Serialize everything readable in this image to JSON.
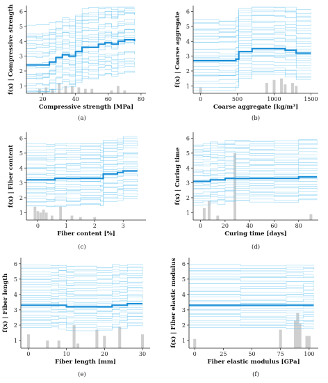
{
  "chart_data": [
    {
      "type": "line",
      "panel_label": "(a)",
      "xlabel": "Compressive strength [MPa]",
      "ylabel": "f(x) | Compressive strength",
      "xlim": [
        10,
        83
      ],
      "ylim": [
        0.5,
        6.4
      ],
      "xticks": [
        20,
        40,
        60,
        80
      ],
      "yticks": [
        1,
        2,
        3,
        4,
        5,
        6
      ],
      "mean_line": {
        "x": [
          10,
          16,
          20,
          24,
          28,
          32,
          36,
          40,
          44,
          48,
          54,
          58,
          62,
          66,
          70,
          76
        ],
        "y": [
          2.4,
          2.4,
          2.4,
          2.6,
          2.9,
          3.1,
          3.0,
          3.3,
          3.6,
          3.6,
          3.8,
          3.9,
          3.8,
          4.0,
          4.1,
          4.0
        ]
      },
      "ice_band": {
        "low": 1.2,
        "high": 5.8,
        "count": 30
      },
      "histogram": {
        "bins": [
          18,
          22,
          26,
          30,
          34,
          38,
          42,
          46,
          50,
          62,
          66,
          70
        ],
        "heights": [
          0.3,
          0.4,
          0.3,
          0.7,
          0.5,
          0.5,
          0.4,
          0.3,
          0.3,
          0.2,
          0.5,
          0.2
        ]
      }
    },
    {
      "type": "line",
      "panel_label": "(b)",
      "xlabel": "Coarse aggregate [kg/m³]",
      "ylabel": "f(x) | Coarse aggregate",
      "xlim": [
        -100,
        1600
      ],
      "ylim": [
        0.5,
        6.4
      ],
      "xticks": [
        0,
        500,
        1000,
        1500
      ],
      "yticks": [
        1,
        2,
        3,
        4,
        5,
        6
      ],
      "mean_line": {
        "x": [
          -100,
          250,
          480,
          520,
          700,
          1000,
          1150,
          1300,
          1500
        ],
        "y": [
          2.7,
          2.7,
          2.8,
          3.3,
          3.5,
          3.5,
          3.4,
          3.2,
          3.2
        ]
      },
      "ice_band": {
        "low": 1.3,
        "high": 6.0,
        "count": 30
      },
      "histogram": {
        "bins": [
          0,
          900,
          1000,
          1100,
          1150,
          1250,
          1300
        ],
        "heights": [
          0.4,
          0.7,
          0.9,
          1.0,
          0.6,
          0.7,
          0.5
        ]
      }
    },
    {
      "type": "line",
      "panel_label": "(c)",
      "xlabel": "Fiber content [%]",
      "ylabel": "f(x) | Fiber content",
      "xlim": [
        -0.4,
        3.8
      ],
      "ylim": [
        0.5,
        6.4
      ],
      "xticks": [
        0,
        1,
        2,
        3
      ],
      "yticks": [
        1,
        2,
        3,
        4,
        5,
        6
      ],
      "mean_line": {
        "x": [
          -0.4,
          0.3,
          0.6,
          1.0,
          1.5,
          2.2,
          2.3,
          2.8,
          3.0,
          3.5
        ],
        "y": [
          3.2,
          3.2,
          3.3,
          3.3,
          3.3,
          3.3,
          3.6,
          3.7,
          3.8,
          3.8
        ]
      },
      "ice_band": {
        "low": 1.6,
        "high": 5.8,
        "count": 30
      },
      "histogram": {
        "bins": [
          -0.1,
          0.0,
          0.1,
          0.2,
          0.3,
          0.5,
          0.8,
          1.2,
          1.5,
          2.0
        ],
        "heights": [
          0.9,
          0.6,
          0.5,
          0.7,
          0.5,
          0.3,
          0.9,
          0.3,
          0.2,
          0.2
        ]
      }
    },
    {
      "type": "line",
      "panel_label": "(d)",
      "xlabel": "Curing time [days]",
      "ylabel": "f(x) | Curing time",
      "xlim": [
        -6,
        96
      ],
      "ylim": [
        0.5,
        6.4
      ],
      "xticks": [
        0,
        20,
        40,
        60,
        80
      ],
      "yticks": [
        1,
        2,
        3,
        4,
        5,
        6
      ],
      "mean_line": {
        "x": [
          -6,
          2,
          8,
          14,
          20,
          28,
          40,
          60,
          80,
          95
        ],
        "y": [
          3.1,
          3.1,
          3.2,
          3.2,
          3.3,
          3.3,
          3.3,
          3.3,
          3.4,
          3.4
        ]
      },
      "ice_band": {
        "low": 1.7,
        "high": 5.8,
        "count": 30
      },
      "histogram": {
        "bins": [
          3,
          7,
          14,
          28,
          90
        ],
        "heights": [
          0.8,
          1.3,
          0.3,
          4.5,
          0.4
        ]
      }
    },
    {
      "type": "line",
      "panel_label": "(e)",
      "xlabel": "Fiber length [mm]",
      "ylabel": "f(x) | Fiber length",
      "xlim": [
        -2,
        32
      ],
      "ylim": [
        0.5,
        6.4
      ],
      "xticks": [
        0,
        10,
        20,
        30
      ],
      "yticks": [
        1,
        2,
        3,
        4,
        5,
        6
      ],
      "mean_line": {
        "x": [
          -2,
          6,
          8,
          10,
          12,
          18,
          22,
          24,
          26,
          30
        ],
        "y": [
          3.3,
          3.3,
          3.3,
          3.2,
          3.2,
          3.2,
          3.3,
          3.3,
          3.4,
          3.4
        ]
      },
      "ice_band": {
        "low": 1.8,
        "high": 5.9,
        "count": 30
      },
      "histogram": {
        "bins": [
          0,
          5,
          8,
          12,
          13,
          18,
          20,
          24,
          30
        ],
        "heights": [
          0.9,
          0.5,
          0.5,
          1.5,
          0.3,
          1.2,
          0.8,
          1.4,
          0.9
        ]
      }
    },
    {
      "type": "line",
      "panel_label": "(f)",
      "xlabel": "Fiber elastic modulus [GPa]",
      "ylabel": "f(x) | Fiber elastic modulus",
      "xlim": [
        -5,
        108
      ],
      "ylim": [
        0.5,
        6.4
      ],
      "xticks": [
        0,
        25,
        50,
        75,
        100
      ],
      "yticks": [
        1,
        2,
        3,
        4,
        5,
        6
      ],
      "mean_line": {
        "x": [
          -5,
          40,
          80,
          95,
          104
        ],
        "y": [
          3.3,
          3.3,
          3.3,
          3.3,
          3.3
        ]
      },
      "ice_band": {
        "low": 1.8,
        "high": 5.9,
        "count": 30
      },
      "histogram": {
        "bins": [
          0,
          75,
          88,
          90,
          92,
          98,
          100
        ],
        "heights": [
          0.6,
          1.2,
          1.8,
          2.3,
          1.6,
          0.8,
          0.8
        ]
      }
    }
  ]
}
